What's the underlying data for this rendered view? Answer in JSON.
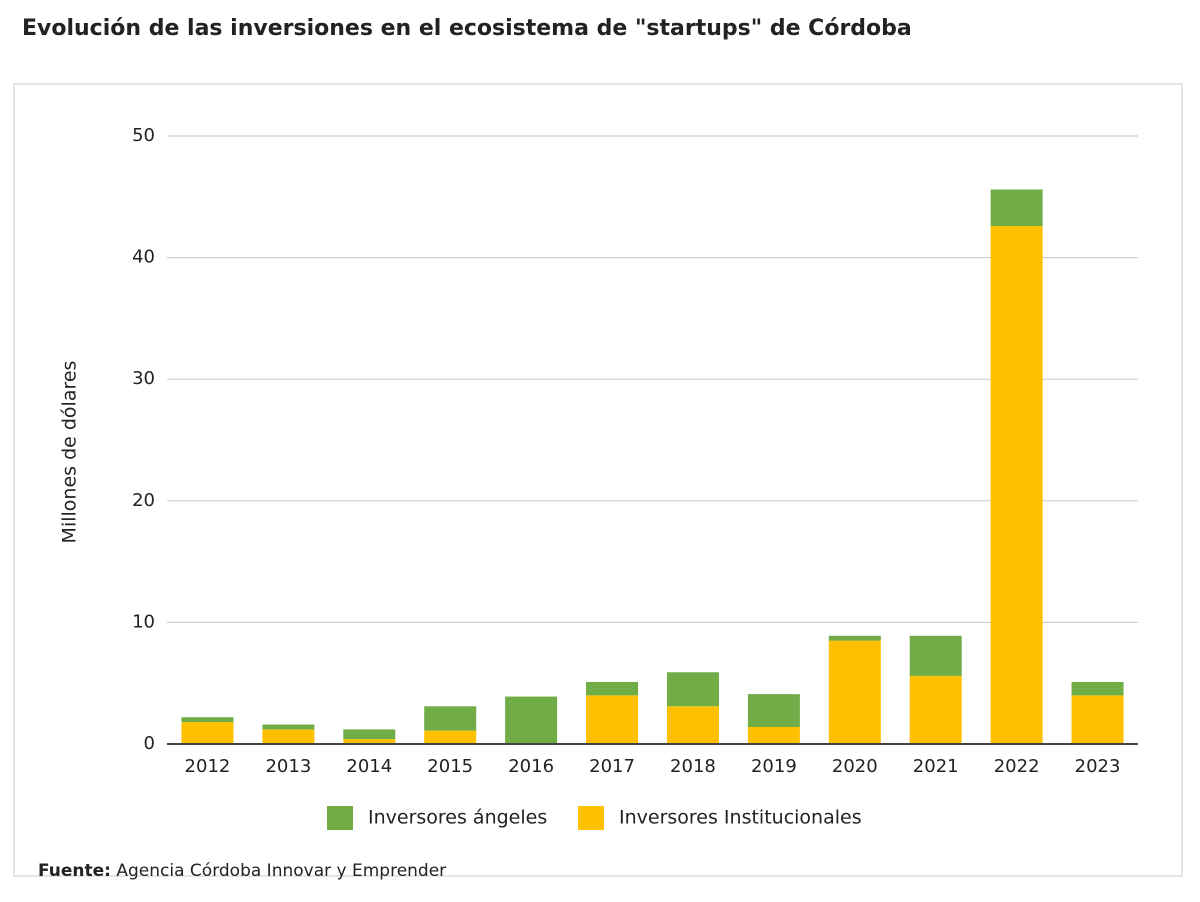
{
  "chart_data": {
    "type": "stacked_bar",
    "title": "Evolución de las inversiones en el ecosistema de \"startups\" de Córdoba",
    "y_label": "Millones de dólares",
    "categories": [
      "2012",
      "2013",
      "2014",
      "2015",
      "2016",
      "2017",
      "2018",
      "2019",
      "2020",
      "2021",
      "2022",
      "2023"
    ],
    "series": [
      {
        "name": "Inversores Institucionales",
        "color": "#ffc000",
        "values": [
          1.8,
          1.2,
          0.4,
          1.1,
          0,
          4.0,
          3.1,
          1.4,
          8.5,
          5.6,
          42.6,
          4.0
        ]
      },
      {
        "name": "Inversores ángeles",
        "color": "#70ad47",
        "values": [
          0.4,
          0.4,
          0.8,
          2.0,
          3.9,
          1.1,
          2.8,
          2.7,
          0.4,
          3.3,
          3.0,
          1.1
        ]
      }
    ],
    "ylim": [
      0,
      50
    ],
    "yticks": [
      0,
      10,
      20,
      30,
      40,
      50
    ],
    "grid": true,
    "source_label": "Fuente:",
    "source_text": "Agencia Córdoba Innovar y Emprender"
  }
}
